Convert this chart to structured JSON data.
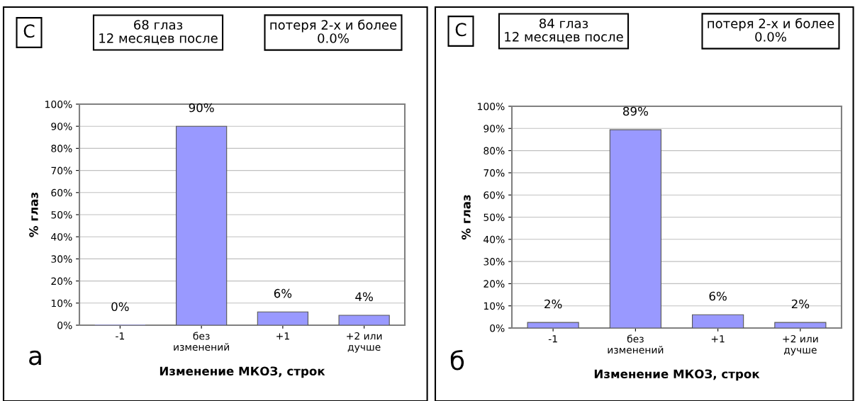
{
  "chart_data": [
    {
      "type": "bar",
      "categories": [
        "-1",
        "без\nизменений",
        "+1",
        "+2 или\nдучше"
      ],
      "values": [
        0,
        90,
        6,
        4.5
      ],
      "value_labels": [
        "0%",
        "90%",
        "6%",
        "4%"
      ],
      "color": "#9999ff",
      "xlabel": "Изменение МКОЗ, строк",
      "ylabel": "% глаз",
      "ylim": [
        0,
        100
      ],
      "yticks": [
        {
          "value": 0,
          "label": "0%"
        },
        {
          "value": 10,
          "label": "10%"
        },
        {
          "value": 20,
          "label": "20%"
        },
        {
          "value": 30,
          "label": "30%"
        },
        {
          "value": 40,
          "label": "40%"
        },
        {
          "value": 50,
          "label": "50%"
        },
        {
          "value": 60,
          "label": "60%"
        },
        {
          "value": 70,
          "label": "70%"
        },
        {
          "value": 80,
          "label": "80%"
        },
        {
          "value": 90,
          "label": "90%"
        },
        {
          "value": 100,
          "label": "100%"
        }
      ],
      "grid": "y",
      "annotations": [
        "C",
        "68 глаз\n12 месяцев после",
        "потеря 2-х и более\n0.0%",
        "а"
      ]
    },
    {
      "type": "bar",
      "categories": [
        "-1",
        "без\nизменений",
        "+1",
        "+2 или\nдучше"
      ],
      "values": [
        2.5,
        89.4,
        6,
        2.5
      ],
      "value_labels": [
        "2%",
        "89%",
        "6%",
        "2%"
      ],
      "color": "#9999ff",
      "xlabel": "Изменение МКОЗ, строк",
      "ylabel": "% глаз",
      "ylim": [
        0,
        100
      ],
      "yticks": [
        {
          "value": 0,
          "label": "0%"
        },
        {
          "value": 10,
          "label": "10%"
        },
        {
          "value": 20,
          "label": "20%"
        },
        {
          "value": 30,
          "label": "30%"
        },
        {
          "value": 40,
          "label": "40%"
        },
        {
          "value": 50,
          "label": "50%"
        },
        {
          "value": 60,
          "label": "60%"
        },
        {
          "value": 70,
          "label": "70%"
        },
        {
          "value": 80,
          "label": "80%"
        },
        {
          "value": 90,
          "label": "90%"
        },
        {
          "value": 100,
          "label": "100%"
        }
      ],
      "grid": "y",
      "annotations": [
        "C",
        "84 глаз\n12 месяцев после",
        "потеря 2-х и более\n0.0%",
        "б"
      ]
    }
  ]
}
